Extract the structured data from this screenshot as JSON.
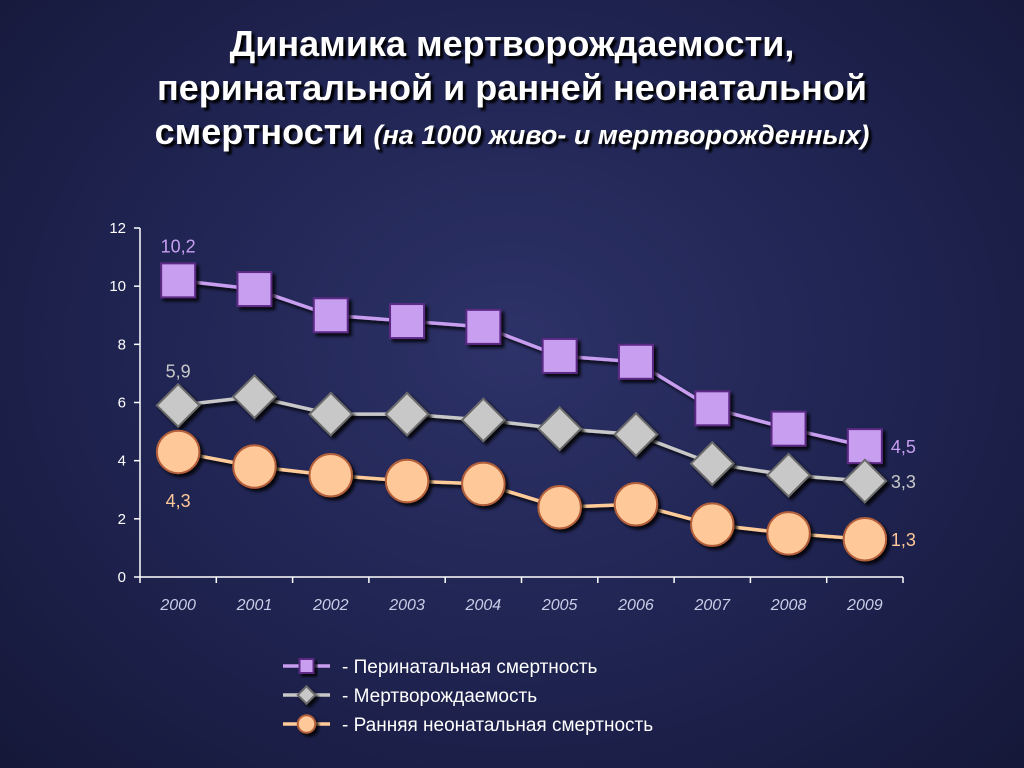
{
  "title": {
    "line1": "Динамика мертворождаемости,",
    "line2": "перинатальной и ранней неонатальной",
    "line3_main": "смертности",
    "line3_sub": "(на 1000 живо- и мертворожденных)"
  },
  "colors": {
    "perinatal": "#c89ef0",
    "perinatal_dark": "#5b2a84",
    "stillbirth": "#c8c8c8",
    "stillbirth_dark": "#6b6b6b",
    "neonatal": "#ffc898",
    "neonatal_dark": "#b35f3a",
    "line_perinatal": "#c89ef0",
    "line_stillbirth": "#c8c8c8",
    "line_neonatal": "#ffcc99",
    "axis": "#ffffff"
  },
  "chart_data": {
    "type": "line",
    "x": [
      "2000",
      "2001",
      "2002",
      "2003",
      "2004",
      "2005",
      "2006",
      "2007",
      "2008",
      "2009"
    ],
    "ylim": [
      0,
      12
    ],
    "yticks": [
      "0",
      "2",
      "4",
      "6",
      "8",
      "10",
      "12"
    ],
    "grid": false,
    "legend_position": "bottom",
    "series": [
      {
        "name": "- Перинатальная смертность",
        "marker": "square",
        "values": [
          10.2,
          9.9,
          9.0,
          8.8,
          8.6,
          7.6,
          7.4,
          5.8,
          5.1,
          4.5
        ],
        "labels": [
          {
            "index": 0,
            "text": "10,2",
            "side": "above"
          },
          {
            "index": 9,
            "text": "4,5",
            "side": "right"
          }
        ]
      },
      {
        "name": "- Мертворождаемость",
        "marker": "diamond",
        "values": [
          5.9,
          6.2,
          5.6,
          5.6,
          5.4,
          5.1,
          4.9,
          3.9,
          3.5,
          3.3
        ],
        "labels": [
          {
            "index": 0,
            "text": "5,9",
            "side": "above"
          },
          {
            "index": 9,
            "text": "3,3",
            "side": "right"
          }
        ]
      },
      {
        "name": "- Ранняя неонатальная смертность",
        "marker": "circle",
        "values": [
          4.3,
          3.8,
          3.5,
          3.3,
          3.2,
          2.4,
          2.5,
          1.8,
          1.5,
          1.3
        ],
        "labels": [
          {
            "index": 0,
            "text": "4,3",
            "side": "below"
          },
          {
            "index": 9,
            "text": "1,3",
            "side": "right"
          }
        ]
      }
    ]
  }
}
